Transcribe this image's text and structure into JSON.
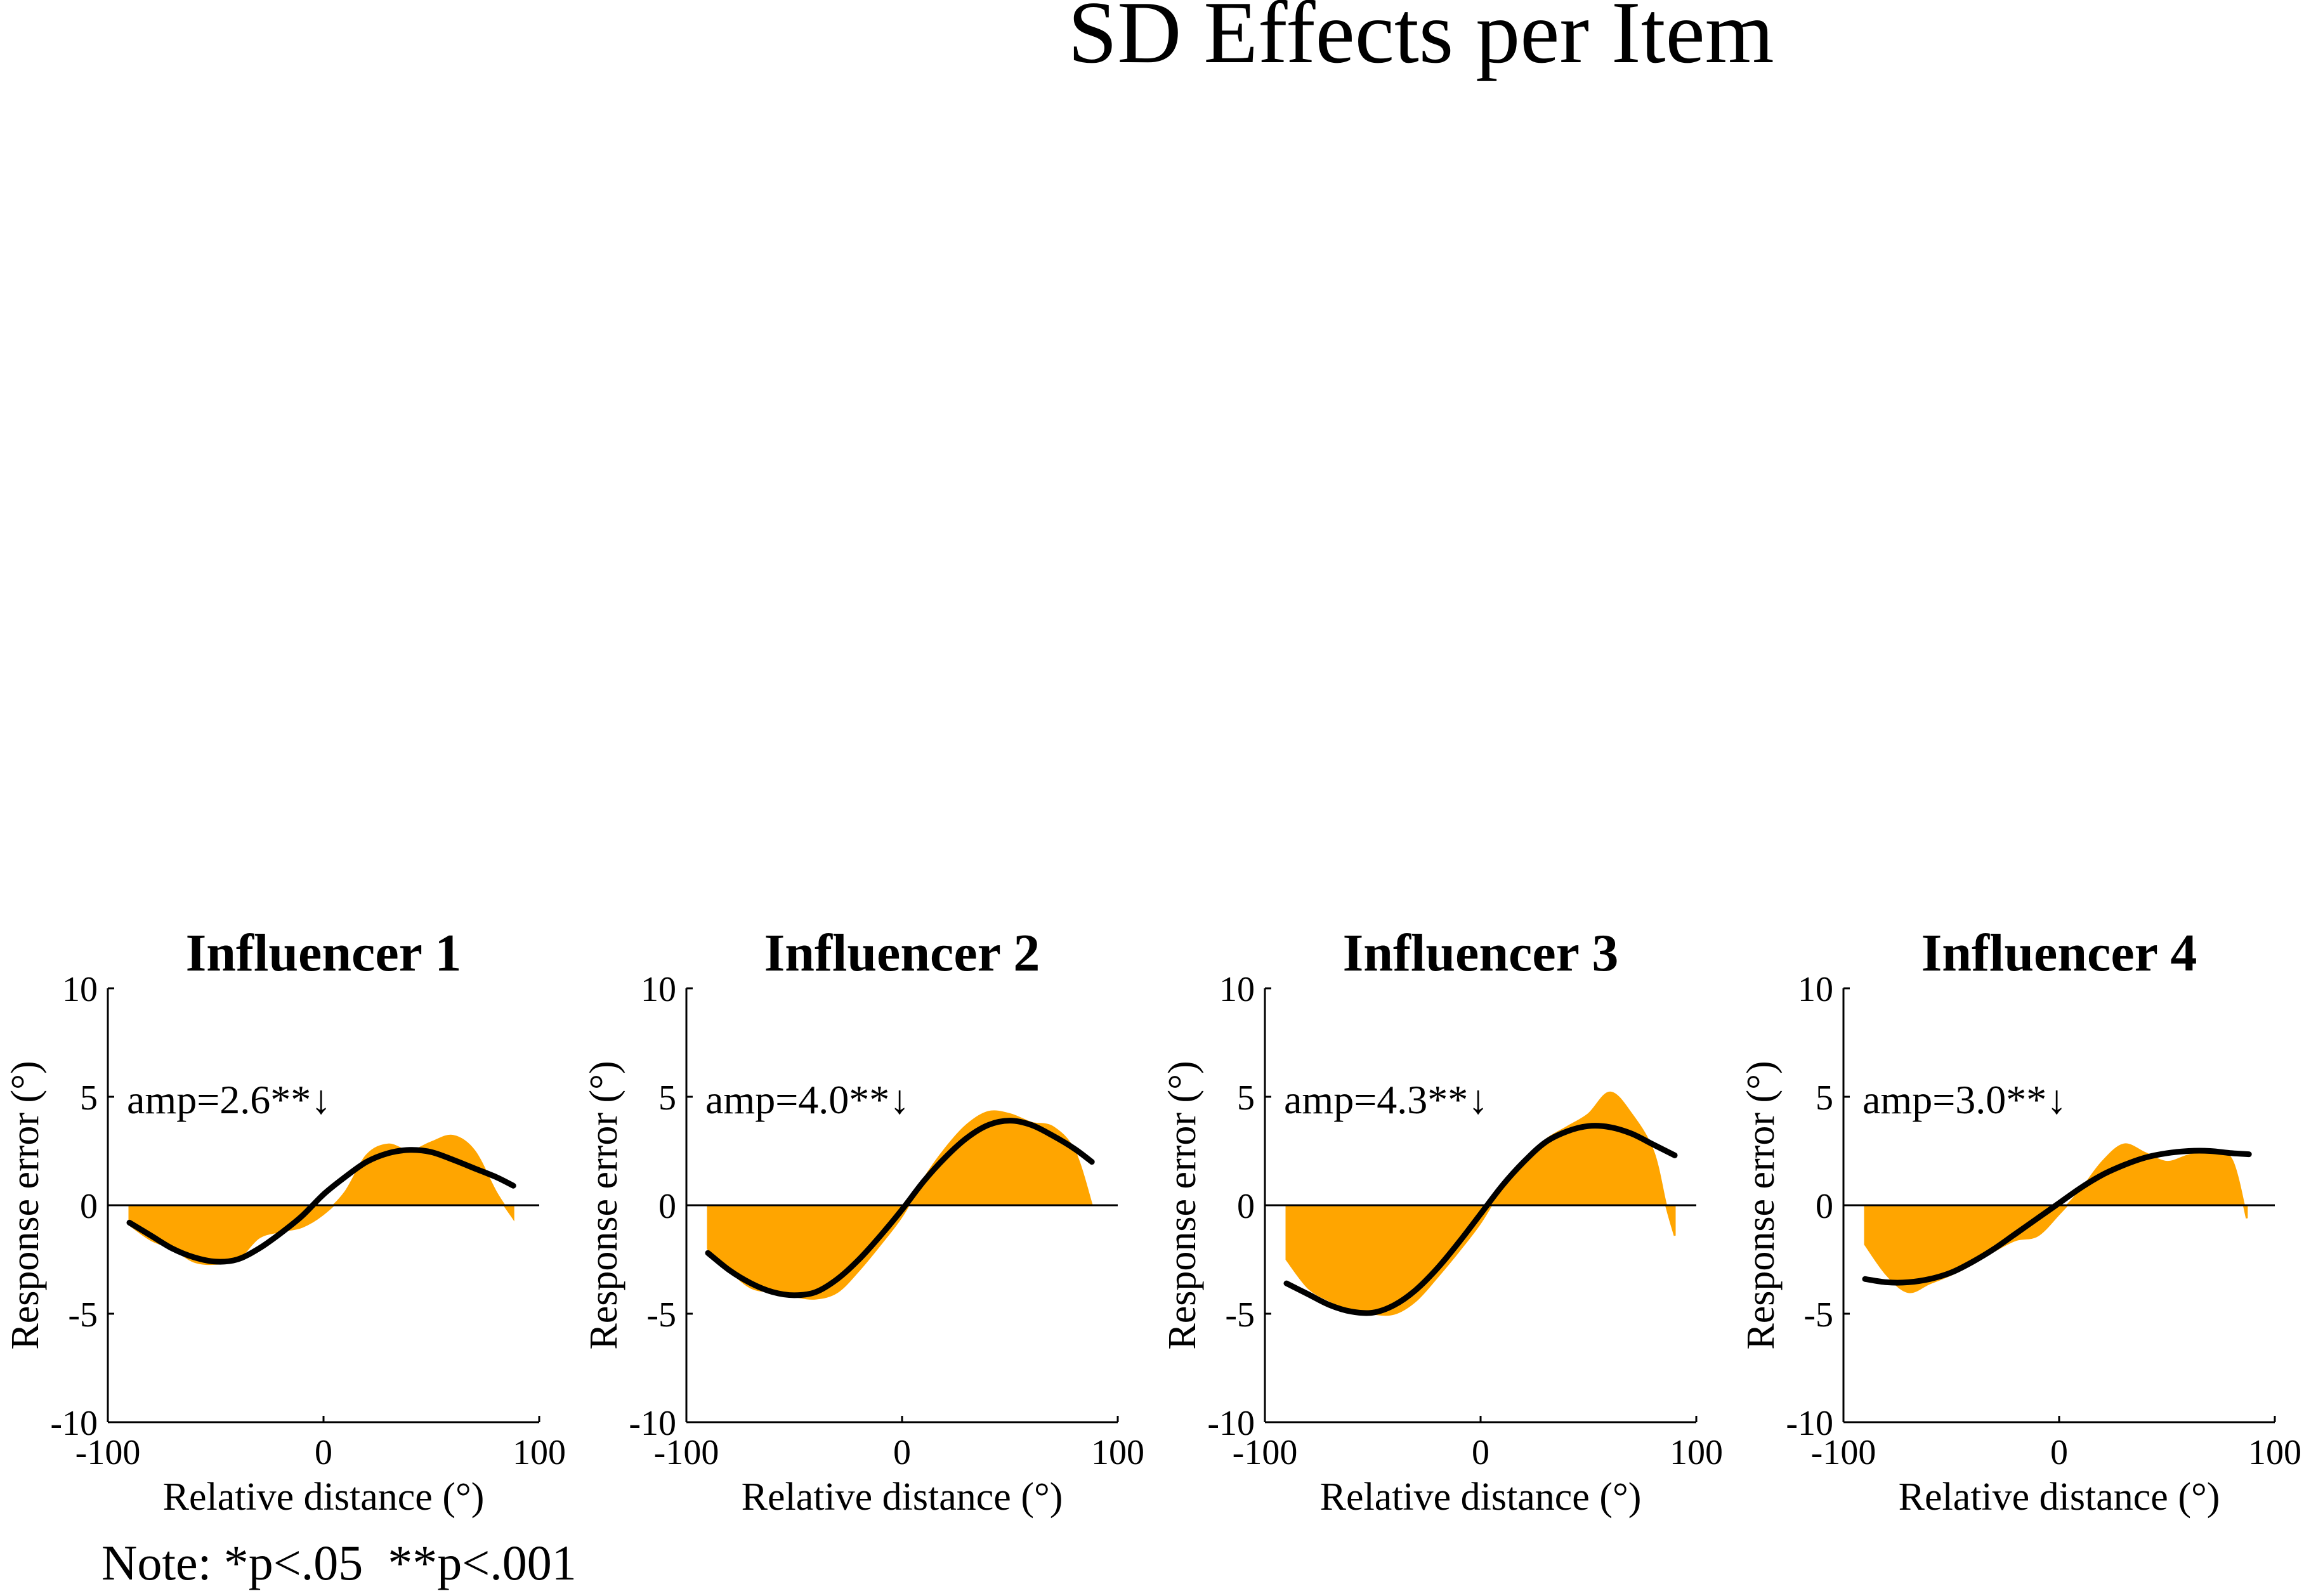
{
  "title": "SD Effects per Item",
  "note": "Note: *p<.05  **p<.001",
  "colors": {
    "fill": "#FFA500",
    "curve": "#000000",
    "axis": "#000000",
    "background": "#FFFFFF"
  },
  "chart_data": [
    {
      "type": "area",
      "title": "Influencer 1",
      "xlabel": "Relative distance (°)",
      "ylabel": "Response error (°)",
      "xlim": [
        -100,
        100
      ],
      "ylim": [
        -10,
        10
      ],
      "xticks": [
        "-100",
        "0",
        "100"
      ],
      "yticks": [
        "10",
        "5",
        "0",
        "-5",
        "-10"
      ],
      "annotation": "amp=2.6**↓",
      "x": [
        -90,
        -80,
        -70,
        -60,
        -50,
        -40,
        -30,
        -20,
        -10,
        0,
        10,
        20,
        30,
        40,
        50,
        60,
        70,
        80,
        88
      ],
      "y": [
        -0.9,
        -1.6,
        -2.0,
        -2.6,
        -2.7,
        -2.5,
        -1.5,
        -1.2,
        -1.0,
        -0.4,
        0.6,
        2.3,
        2.8,
        2.5,
        2.9,
        3.2,
        2.5,
        0.6,
        -0.6
      ],
      "fit_curve": {
        "name": "fit",
        "x": [
          -90,
          -80,
          -70,
          -60,
          -50,
          -40,
          -30,
          -20,
          -10,
          0,
          10,
          20,
          30,
          40,
          50,
          60,
          70,
          80,
          88
        ],
        "y": [
          -0.8,
          -1.4,
          -2.0,
          -2.4,
          -2.6,
          -2.5,
          -2.0,
          -1.3,
          -0.5,
          0.5,
          1.3,
          2.0,
          2.4,
          2.55,
          2.45,
          2.1,
          1.7,
          1.3,
          0.9
        ]
      }
    },
    {
      "type": "area",
      "title": "Influencer 2",
      "xlabel": "Relative distance (°)",
      "ylabel": "Response error (°)",
      "xlim": [
        -100,
        100
      ],
      "ylim": [
        -10,
        10
      ],
      "xticks": [
        "-100",
        "0",
        "100"
      ],
      "yticks": [
        "10",
        "5",
        "0",
        "-5",
        "-10"
      ],
      "annotation": "amp=4.0**↓",
      "x": [
        -90,
        -80,
        -70,
        -60,
        -50,
        -40,
        -30,
        -20,
        -10,
        0,
        10,
        20,
        30,
        40,
        50,
        60,
        70,
        80,
        88
      ],
      "y": [
        -2.0,
        -3.0,
        -3.8,
        -4.0,
        -4.2,
        -4.3,
        -4.0,
        -3.0,
        -1.8,
        -0.5,
        1.2,
        2.6,
        3.7,
        4.3,
        4.2,
        3.8,
        3.6,
        2.5,
        0.0
      ],
      "fit_curve": {
        "name": "fit",
        "x": [
          -90,
          -80,
          -70,
          -60,
          -50,
          -40,
          -30,
          -20,
          -10,
          0,
          10,
          20,
          30,
          40,
          50,
          60,
          70,
          80,
          88
        ],
        "y": [
          -2.2,
          -3.0,
          -3.6,
          -4.0,
          -4.15,
          -4.0,
          -3.4,
          -2.5,
          -1.4,
          -0.2,
          1.1,
          2.2,
          3.1,
          3.7,
          3.9,
          3.7,
          3.2,
          2.6,
          2.0
        ]
      }
    },
    {
      "type": "area",
      "title": "Influencer 3",
      "xlabel": "Relative distance (°)",
      "ylabel": "Response error (°)",
      "xlim": [
        -100,
        100
      ],
      "ylim": [
        -10,
        10
      ],
      "xticks": [
        "-100",
        "0",
        "100"
      ],
      "yticks": [
        "10",
        "5",
        "0",
        "-5",
        "-10"
      ],
      "annotation": "amp=4.3**↓",
      "x": [
        -90,
        -80,
        -70,
        -60,
        -50,
        -40,
        -30,
        -20,
        -10,
        0,
        10,
        20,
        30,
        40,
        50,
        60,
        70,
        80,
        86,
        90
      ],
      "y": [
        -2.5,
        -3.8,
        -4.4,
        -4.8,
        -5.0,
        -5.0,
        -4.4,
        -3.3,
        -2.1,
        -0.8,
        0.8,
        2.0,
        3.0,
        3.6,
        4.2,
        5.2,
        4.2,
        2.5,
        0.0,
        -1.4
      ],
      "fit_curve": {
        "name": "fit",
        "x": [
          -90,
          -80,
          -70,
          -60,
          -50,
          -40,
          -30,
          -20,
          -10,
          0,
          10,
          20,
          30,
          40,
          50,
          60,
          70,
          80,
          90
        ],
        "y": [
          -3.6,
          -4.1,
          -4.6,
          -4.9,
          -4.95,
          -4.6,
          -3.9,
          -2.9,
          -1.7,
          -0.4,
          0.9,
          2.0,
          2.9,
          3.4,
          3.65,
          3.6,
          3.3,
          2.8,
          2.3
        ]
      }
    },
    {
      "type": "area",
      "title": "Influencer 4",
      "xlabel": "Relative distance (°)",
      "ylabel": "Response error (°)",
      "xlim": [
        -100,
        100
      ],
      "ylim": [
        -10,
        10
      ],
      "xticks": [
        "-100",
        "0",
        "100"
      ],
      "yticks": [
        "10",
        "5",
        "0",
        "-5",
        "-10"
      ],
      "annotation": "amp=3.0**↓",
      "x": [
        -90,
        -80,
        -70,
        -60,
        -50,
        -40,
        -30,
        -20,
        -10,
        0,
        10,
        20,
        30,
        40,
        50,
        60,
        70,
        80,
        87
      ],
      "y": [
        -1.8,
        -3.2,
        -4.0,
        -3.6,
        -3.2,
        -2.7,
        -2.1,
        -1.6,
        -1.4,
        -0.4,
        0.7,
        2.0,
        2.8,
        2.4,
        2.0,
        2.3,
        2.5,
        2.1,
        -0.6
      ],
      "fit_curve": {
        "name": "fit",
        "x": [
          -90,
          -80,
          -70,
          -60,
          -50,
          -40,
          -30,
          -20,
          -10,
          0,
          10,
          20,
          30,
          40,
          50,
          60,
          70,
          80,
          88
        ],
        "y": [
          -3.4,
          -3.55,
          -3.55,
          -3.4,
          -3.1,
          -2.6,
          -2.0,
          -1.3,
          -0.6,
          0.1,
          0.8,
          1.4,
          1.85,
          2.2,
          2.4,
          2.5,
          2.5,
          2.4,
          2.35
        ]
      }
    }
  ]
}
